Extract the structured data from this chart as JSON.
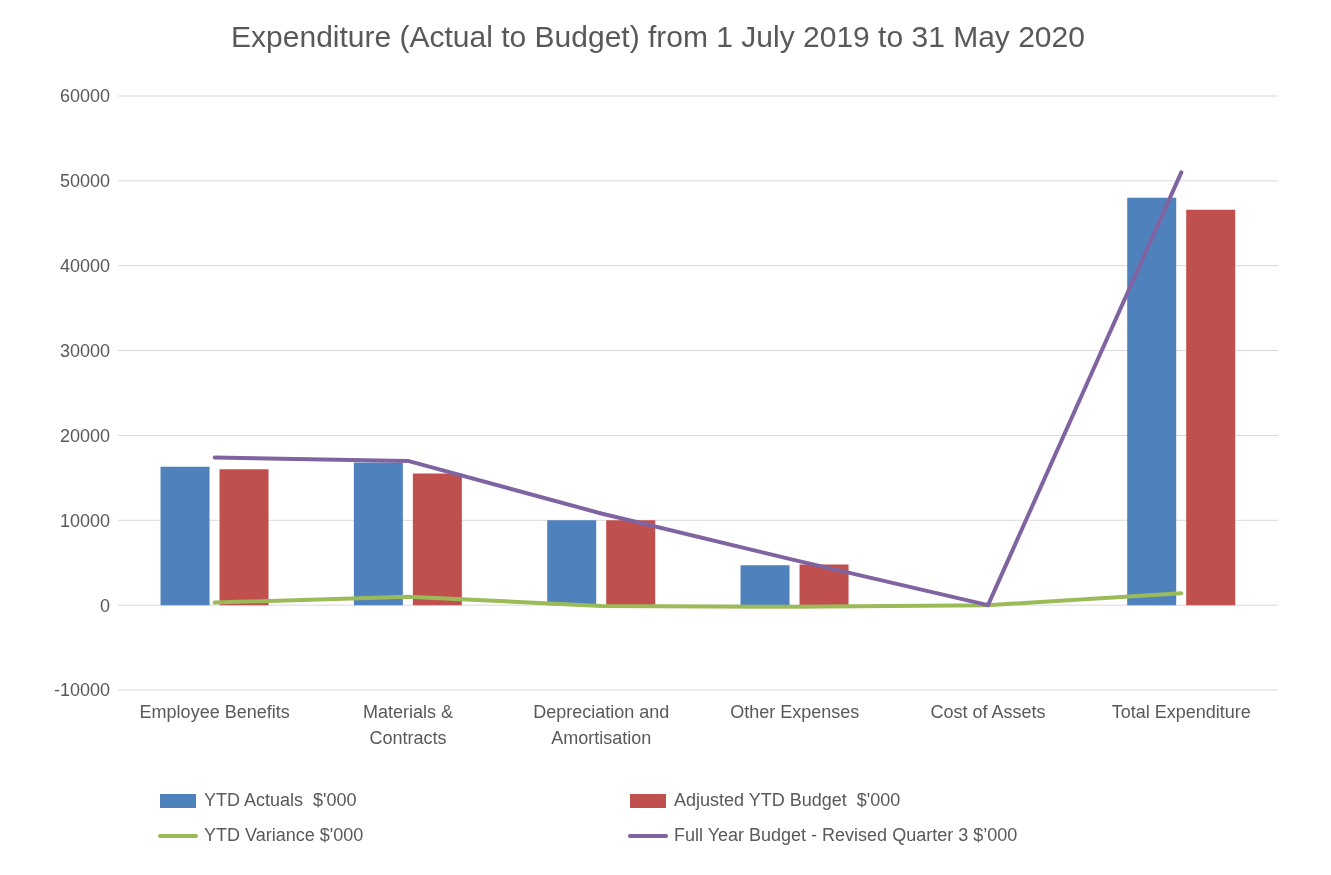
{
  "chart_data": {
    "type": "bar",
    "title": "Expenditure (Actual to Budget) from 1 July 2019 to 31 May 2020",
    "categories": [
      "Employee Benefits",
      "Materials & Contracts",
      "Depreciation and Amortisation",
      "Other Expenses",
      "Cost of Assets",
      "Total Expenditure"
    ],
    "series": [
      {
        "name": "YTD Actuals  $'000",
        "color": "#4f81bd",
        "values": [
          16300,
          16800,
          10000,
          4700,
          0,
          48000
        ]
      },
      {
        "name": "Adjusted YTD Budget  $'000",
        "color": "#c0504d",
        "values": [
          16000,
          15500,
          10000,
          4800,
          0,
          46600
        ]
      },
      {
        "name": "YTD Variance $'000",
        "type": "line",
        "color": "#9bbb59",
        "values": [
          300,
          1000,
          -100,
          -200,
          0,
          1400
        ]
      },
      {
        "name": "Full Year Budget - Revised Quarter 3 $’000",
        "type": "line",
        "color": "#8064a2",
        "values": [
          17400,
          17000,
          10800,
          5300,
          0,
          51000
        ]
      }
    ],
    "ylim": [
      -10000,
      60000
    ],
    "yticks": [
      -10000,
      0,
      10000,
      20000,
      30000,
      40000,
      50000,
      60000
    ],
    "grid": "y",
    "legend": "bottom",
    "marker": "none"
  }
}
